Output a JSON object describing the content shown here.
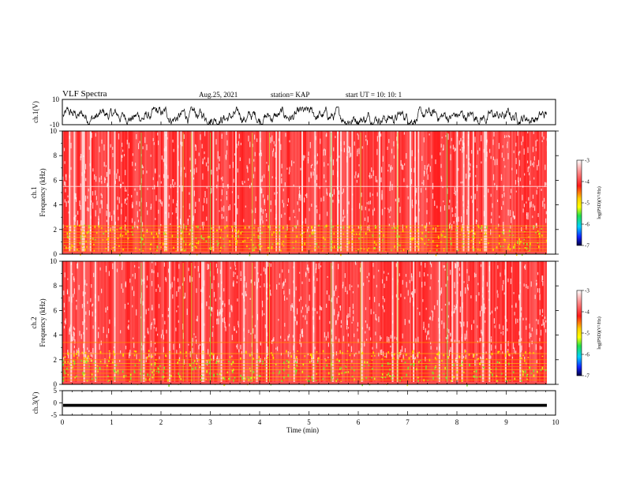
{
  "header": {
    "title": "VLF Spectra",
    "date": "Aug.25, 2021",
    "station": "station= KAP",
    "start": "start  UT  =   10: 10: 1"
  },
  "chart_data": [
    {
      "type": "line",
      "name": "waveform-ch1",
      "ylabel": "ch.1(V)",
      "ylim": [
        -10,
        10
      ],
      "ytick_labels": [
        "10",
        "-10"
      ],
      "xlim": [
        0,
        10
      ],
      "note_visible": "dense black trace between about -10 and 4 V"
    },
    {
      "type": "heatmap",
      "name": "spectrogram-ch1",
      "ylabel_lines": [
        "ch.1",
        "Frequency  (kHz)"
      ],
      "ylim": [
        0,
        10
      ],
      "ytick_labels": [
        "0",
        "2",
        "4",
        "6",
        "8",
        "10"
      ],
      "xlim": [
        0,
        9.8
      ],
      "colorbar": {
        "label": "log(PSD)(V²/Hz)",
        "range": [
          -7,
          -3
        ],
        "tick_labels": [
          "-3",
          "-4",
          "-5",
          "-6",
          "-7"
        ]
      }
    },
    {
      "type": "heatmap",
      "name": "spectrogram-ch2",
      "ylabel_lines": [
        "ch.2",
        "Frequency  (kHz)"
      ],
      "ylim": [
        0,
        10
      ],
      "ytick_labels": [
        "0",
        "2",
        "4",
        "6",
        "8",
        "10"
      ],
      "xlim": [
        0,
        9.8
      ],
      "colorbar": {
        "label": "log(PSD)(V²/Hz)",
        "range": [
          -7,
          -3
        ],
        "tick_labels": [
          "-3",
          "-4",
          "-5",
          "-6",
          "-7"
        ]
      }
    },
    {
      "type": "line",
      "name": "waveform-ch3",
      "ylabel": "ch.3(V)",
      "ylim": [
        -5,
        5
      ],
      "ytick_labels": [
        "5",
        "0",
        "-5"
      ],
      "level": -1,
      "xlim": [
        0,
        10
      ],
      "xlabel": "Time  (min)",
      "xtick_labels": [
        "0",
        "1",
        "2",
        "3",
        "4",
        "5",
        "6",
        "7",
        "8",
        "9",
        "10"
      ]
    }
  ],
  "colors": {
    "background": "#ffffff",
    "axis": "#000000",
    "spectro_low": "#ff2a2a",
    "spectro_mid": "#ffff00",
    "spectro_high": "#22dd44"
  }
}
